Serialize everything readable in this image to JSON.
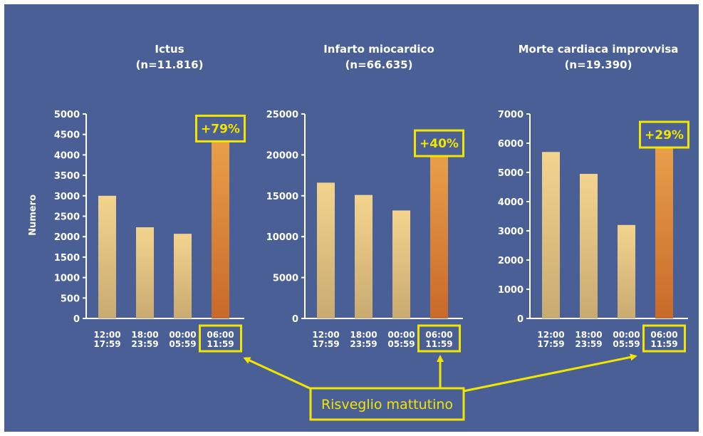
{
  "ylabel": "Numero",
  "callout_label": "Risveglio mattutino",
  "colors": {
    "background": "#4a5f96",
    "axis": "#ffffff",
    "highlight": "#f2e600",
    "bar_top": "#f3d48e",
    "bar_bottom": "#c9aa71",
    "bar_highlight_top": "#e9a04a",
    "bar_highlight_bottom": "#c8692a"
  },
  "chart_data": [
    {
      "type": "bar",
      "title": "Ictus",
      "subtitle": "(n=11.816)",
      "categories": [
        [
          "12:00",
          "17:59"
        ],
        [
          "18:00",
          "23:59"
        ],
        [
          "00:00",
          "05:59"
        ],
        [
          "06:00",
          "11:59"
        ]
      ],
      "values": [
        3000,
        2230,
        2070,
        4400
      ],
      "ylim": [
        0,
        5000
      ],
      "yticks": [
        0,
        500,
        1000,
        1500,
        2000,
        2500,
        3000,
        3500,
        4000,
        4500,
        5000
      ],
      "highlight_index": 3,
      "highlight_label": "+79%"
    },
    {
      "type": "bar",
      "title": "Infarto miocardico",
      "subtitle": "(n=66.635)",
      "categories": [
        [
          "12:00",
          "17:59"
        ],
        [
          "18:00",
          "23:59"
        ],
        [
          "00:00",
          "05:59"
        ],
        [
          "06:00",
          "11:59"
        ]
      ],
      "values": [
        16600,
        15100,
        13200,
        20200
      ],
      "ylim": [
        0,
        25000
      ],
      "yticks": [
        0,
        5000,
        10000,
        15000,
        20000,
        25000
      ],
      "highlight_index": 3,
      "highlight_label": "+40%"
    },
    {
      "type": "bar",
      "title": "Morte cardiaca improvvisa",
      "subtitle": "(n=19.390)",
      "categories": [
        [
          "12:00",
          "17:59"
        ],
        [
          "18:00",
          "23:59"
        ],
        [
          "00:00",
          "05:59"
        ],
        [
          "06:00",
          "11:59"
        ]
      ],
      "values": [
        5700,
        4950,
        3200,
        5950
      ],
      "ylim": [
        0,
        7000
      ],
      "yticks": [
        0,
        1000,
        2000,
        3000,
        4000,
        5000,
        6000,
        7000
      ],
      "highlight_index": 3,
      "highlight_label": "+29%"
    }
  ]
}
